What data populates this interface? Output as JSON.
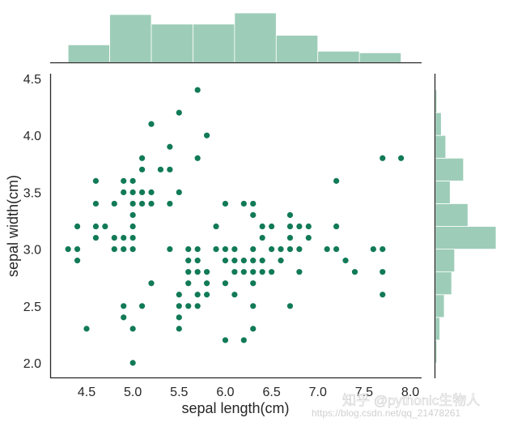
{
  "chart_data": {
    "type": "scatter",
    "subtype": "jointplot",
    "title": "",
    "xlabel": "sepal length(cm)",
    "ylabel": "sepal width(cm)",
    "xlim": [
      4.1,
      8.1
    ],
    "ylim": [
      1.88,
      4.55
    ],
    "xticks": [
      "4.5",
      "5.0",
      "5.5",
      "6.0",
      "6.5",
      "7.0",
      "7.5",
      "8.0"
    ],
    "yticks": [
      "2.0",
      "2.5",
      "3.0",
      "3.5",
      "4.0",
      "4.5"
    ],
    "grid": false,
    "point_color": "#117a56",
    "hist_color": "#9dcdb8",
    "points": [
      [
        5.7,
        4.4
      ],
      [
        5.5,
        4.2
      ],
      [
        5.2,
        4.1
      ],
      [
        5.8,
        4.0
      ],
      [
        5.4,
        3.9
      ],
      [
        5.1,
        3.8
      ],
      [
        5.7,
        3.8
      ],
      [
        7.7,
        3.8
      ],
      [
        7.9,
        3.8
      ],
      [
        5.1,
        3.7
      ],
      [
        5.3,
        3.7
      ],
      [
        5.4,
        3.7
      ],
      [
        4.6,
        3.6
      ],
      [
        5.0,
        3.6
      ],
      [
        4.9,
        3.6
      ],
      [
        7.2,
        3.6
      ],
      [
        5.0,
        3.5
      ],
      [
        5.1,
        3.5
      ],
      [
        5.2,
        3.5
      ],
      [
        5.5,
        3.5
      ],
      [
        4.9,
        3.5
      ],
      [
        4.6,
        3.4
      ],
      [
        4.8,
        3.4
      ],
      [
        5.0,
        3.4
      ],
      [
        5.1,
        3.4
      ],
      [
        5.2,
        3.4
      ],
      [
        5.4,
        3.4
      ],
      [
        6.0,
        3.4
      ],
      [
        6.2,
        3.4
      ],
      [
        6.3,
        3.4
      ],
      [
        5.0,
        3.3
      ],
      [
        6.3,
        3.3
      ],
      [
        6.7,
        3.3
      ],
      [
        4.4,
        3.2
      ],
      [
        4.6,
        3.2
      ],
      [
        4.7,
        3.2
      ],
      [
        5.0,
        3.2
      ],
      [
        5.9,
        3.2
      ],
      [
        6.4,
        3.2
      ],
      [
        6.5,
        3.2
      ],
      [
        6.7,
        3.2
      ],
      [
        6.8,
        3.2
      ],
      [
        6.9,
        3.2
      ],
      [
        7.2,
        3.2
      ],
      [
        4.6,
        3.1
      ],
      [
        4.8,
        3.1
      ],
      [
        4.9,
        3.1
      ],
      [
        5.0,
        3.1
      ],
      [
        6.4,
        3.1
      ],
      [
        6.7,
        3.1
      ],
      [
        6.9,
        3.1
      ],
      [
        4.3,
        3.0
      ],
      [
        4.4,
        3.0
      ],
      [
        4.8,
        3.0
      ],
      [
        4.9,
        3.0
      ],
      [
        5.0,
        3.0
      ],
      [
        5.6,
        3.0
      ],
      [
        5.7,
        3.0
      ],
      [
        5.9,
        3.0
      ],
      [
        6.0,
        3.0
      ],
      [
        6.1,
        3.0
      ],
      [
        6.5,
        3.0
      ],
      [
        6.6,
        3.0
      ],
      [
        6.7,
        3.0
      ],
      [
        6.8,
        3.0
      ],
      [
        7.1,
        3.0
      ],
      [
        7.2,
        3.0
      ],
      [
        7.6,
        3.0
      ],
      [
        7.7,
        3.0
      ],
      [
        5.4,
        3.0
      ],
      [
        6.3,
        3.0
      ],
      [
        4.4,
        2.9
      ],
      [
        5.6,
        2.9
      ],
      [
        5.7,
        2.9
      ],
      [
        6.0,
        2.9
      ],
      [
        6.1,
        2.9
      ],
      [
        6.2,
        2.9
      ],
      [
        6.3,
        2.9
      ],
      [
        6.4,
        2.9
      ],
      [
        6.6,
        2.9
      ],
      [
        7.3,
        2.9
      ],
      [
        5.6,
        2.8
      ],
      [
        5.7,
        2.8
      ],
      [
        5.8,
        2.8
      ],
      [
        6.1,
        2.8
      ],
      [
        6.2,
        2.8
      ],
      [
        6.3,
        2.8
      ],
      [
        6.4,
        2.8
      ],
      [
        6.5,
        2.8
      ],
      [
        6.8,
        2.8
      ],
      [
        7.4,
        2.8
      ],
      [
        7.7,
        2.8
      ],
      [
        5.2,
        2.7
      ],
      [
        5.6,
        2.7
      ],
      [
        5.8,
        2.7
      ],
      [
        6.0,
        2.7
      ],
      [
        6.3,
        2.7
      ],
      [
        5.5,
        2.6
      ],
      [
        5.7,
        2.6
      ],
      [
        5.8,
        2.6
      ],
      [
        6.1,
        2.6
      ],
      [
        7.7,
        2.6
      ],
      [
        4.9,
        2.5
      ],
      [
        5.1,
        2.5
      ],
      [
        5.5,
        2.5
      ],
      [
        5.6,
        2.5
      ],
      [
        5.7,
        2.5
      ],
      [
        6.3,
        2.5
      ],
      [
        6.7,
        2.5
      ],
      [
        4.9,
        2.4
      ],
      [
        5.5,
        2.4
      ],
      [
        4.5,
        2.3
      ],
      [
        5.0,
        2.3
      ],
      [
        5.5,
        2.3
      ],
      [
        6.3,
        2.3
      ],
      [
        6.0,
        2.2
      ],
      [
        6.2,
        2.2
      ],
      [
        5.0,
        2.0
      ]
    ],
    "x_hist": {
      "bin_edges": [
        4.3,
        4.75,
        5.2,
        5.65,
        6.1,
        6.55,
        7.0,
        7.45,
        7.9
      ],
      "counts": [
        11,
        30,
        24,
        24,
        31,
        17,
        7,
        6
      ]
    },
    "y_hist": {
      "bin_edges": [
        2.0,
        2.2,
        2.4,
        2.6,
        2.8,
        3.0,
        3.2,
        3.4,
        3.6,
        3.8,
        4.0,
        4.2,
        4.4
      ],
      "counts": [
        1,
        3,
        6,
        11,
        13,
        41,
        22,
        10,
        19,
        7,
        4,
        1
      ],
      "note": "horizontal bars; bin 12 (top) very small"
    }
  },
  "watermark": {
    "line1": "知乎 @pythonic生物人",
    "line2": "https://blog.csdn.net/qq_21478261"
  }
}
